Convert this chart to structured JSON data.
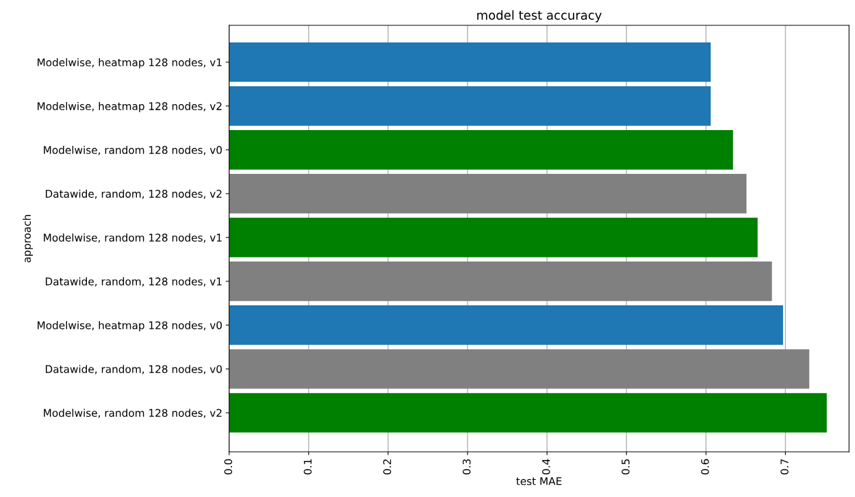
{
  "chart_data": {
    "type": "bar",
    "orientation": "horizontal",
    "title": "model test accuracy",
    "xlabel": "test MAE",
    "ylabel": "approach",
    "categories": [
      "Modelwise, heatmap 128 nodes, v1",
      "Modelwise, heatmap 128 nodes, v2",
      "Modelwise, random 128 nodes, v0",
      "Datawide, random, 128 nodes, v2",
      "Modelwise, random 128 nodes, v1",
      "Datawide, random, 128 nodes, v1",
      "Modelwise, heatmap 128 nodes, v0",
      "Datawide, random, 128 nodes, v0",
      "Modelwise, random 128 nodes, v2"
    ],
    "values": [
      0.606,
      0.606,
      0.634,
      0.651,
      0.665,
      0.683,
      0.697,
      0.73,
      0.752
    ],
    "colors": [
      "#1f77b4",
      "#1f77b4",
      "#008000",
      "#808080",
      "#008000",
      "#808080",
      "#1f77b4",
      "#808080",
      "#008000"
    ],
    "xlim": [
      0,
      0.78
    ],
    "xticks": [
      {
        "value": 0,
        "label": "0.0"
      },
      0.1,
      0.2,
      0.3,
      0.4,
      0.5,
      0.6,
      0.7
    ],
    "grid": "x"
  }
}
